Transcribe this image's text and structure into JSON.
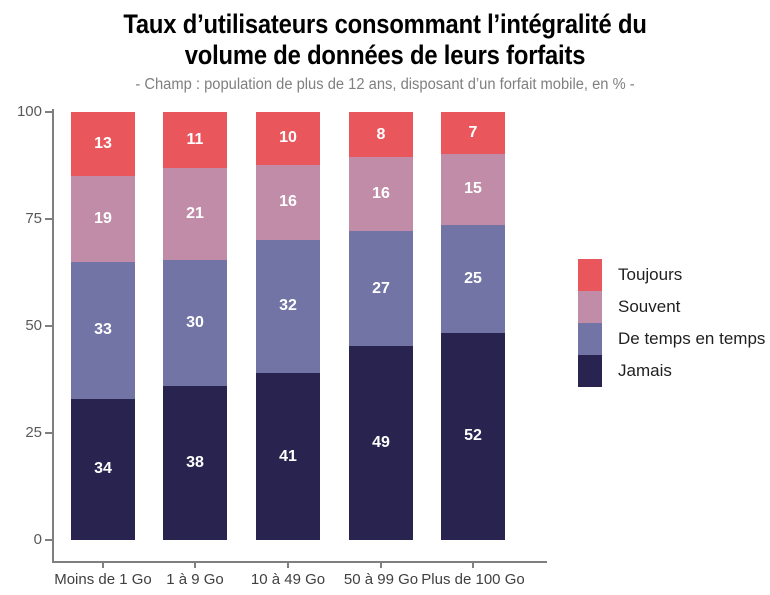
{
  "header": {
    "title_line1": "Taux d’utilisateurs consommant l’intégralité du",
    "title_line2": "volume de données de leurs forfaits",
    "subtitle": "- Champ : population de plus de 12 ans, disposant d’un forfait mobile, en % -"
  },
  "chart_data": {
    "type": "bar",
    "variant": "stacked-percent",
    "title": "Taux d’utilisateurs consommant l’intégralité du volume de données de leurs forfaits",
    "subtitle": "- Champ : population de plus de 12 ans, disposant d’un forfait mobile, en % -",
    "categories": [
      "Moins de 1 Go",
      "1 à 9 Go",
      "10 à 49 Go",
      "50 à 99 Go",
      "Plus de 100 Go"
    ],
    "series": [
      {
        "name": "Toujours",
        "color": "#E9575D",
        "values": [
          13,
          11,
          10,
          8,
          7
        ]
      },
      {
        "name": "Souvent",
        "color": "#C08CA7",
        "values": [
          19,
          21,
          16,
          16,
          15
        ]
      },
      {
        "name": "De temps en temps",
        "color": "#7274A5",
        "values": [
          33,
          30,
          32,
          27,
          25
        ]
      },
      {
        "name": "Jamais",
        "color": "#28234F",
        "values": [
          34,
          38,
          41,
          49,
          52
        ]
      }
    ],
    "y_ticks": [
      0,
      25,
      50,
      75,
      100
    ],
    "ylim": [
      0,
      100
    ],
    "xlabel": "",
    "ylabel": "",
    "grid": false,
    "legend_position": "right",
    "colors": {
      "axis": "#7F7F7F",
      "y_tick_labels": "#595959",
      "x_tick_labels": "#404040",
      "value_labels": "#FFFFFF",
      "title": "#000000",
      "subtitle": "#7F7F7F"
    }
  }
}
